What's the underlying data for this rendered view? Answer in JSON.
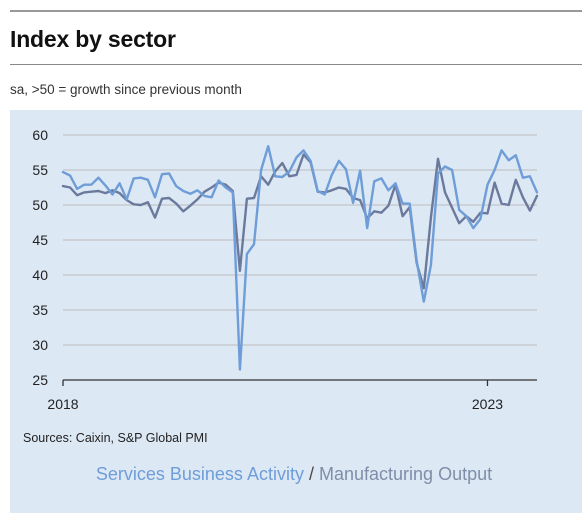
{
  "title": "Index by sector",
  "subtitle": "sa, >50 = growth since previous month",
  "sources": "Sources: Caixin, S&P Global PMI",
  "legend": {
    "services": "Services Business Activity",
    "separator": "/",
    "manufacturing": "Manufacturing Output"
  },
  "colors": {
    "services": "#6f9dd8",
    "manufacturing": "#6b7a9c",
    "panel": "#dde8f5",
    "grid": "#bbbbbb"
  },
  "chart_data": {
    "type": "line",
    "title": "Index by sector",
    "subtitle": "sa, >50 = growth since previous month",
    "xlabel": "",
    "ylabel": "",
    "ylim": [
      25,
      60
    ],
    "yticks": [
      25,
      30,
      35,
      40,
      45,
      50,
      55,
      60
    ],
    "xticks": [
      {
        "label": "2018",
        "month": 0
      },
      {
        "label": "2023",
        "month": 60
      }
    ],
    "x_start": "2018-01",
    "grid": "horizontal",
    "legend_position": "bottom",
    "series": [
      {
        "name": "Services Business Activity",
        "color": "#6f9dd8",
        "values": [
          54.7,
          54.2,
          52.3,
          52.9,
          52.9,
          53.9,
          52.8,
          51.5,
          53.1,
          50.8,
          53.8,
          53.9,
          53.6,
          51.1,
          54.4,
          54.5,
          52.7,
          52.0,
          51.6,
          52.1,
          51.3,
          51.1,
          53.5,
          52.5,
          51.8,
          26.5,
          43.0,
          44.4,
          55.0,
          58.4,
          54.1,
          54.0,
          54.8,
          56.8,
          57.8,
          56.3,
          52.0,
          51.5,
          54.3,
          56.3,
          55.1,
          50.3,
          54.9,
          46.7,
          53.4,
          53.8,
          52.1,
          53.1,
          50.2,
          50.2,
          42.0,
          36.2,
          41.4,
          54.5,
          55.5,
          55.0,
          49.3,
          48.4,
          46.7,
          48.0,
          52.9,
          55.0,
          57.8,
          56.4,
          57.1,
          53.9,
          54.1,
          51.8
        ]
      },
      {
        "name": "Manufacturing Output",
        "color": "#6b7a9c",
        "values": [
          52.7,
          52.5,
          51.4,
          51.8,
          51.9,
          52.0,
          51.7,
          52.1,
          51.7,
          50.7,
          50.1,
          50.0,
          50.4,
          48.2,
          50.9,
          51.0,
          50.2,
          49.1,
          49.9,
          50.8,
          51.9,
          52.5,
          53.2,
          52.9,
          52.0,
          40.6,
          50.9,
          51.0,
          54.1,
          52.9,
          54.8,
          56.0,
          54.1,
          54.3,
          57.2,
          56.1,
          51.9,
          51.8,
          52.1,
          52.5,
          52.3,
          51.0,
          50.7,
          48.1,
          49.1,
          48.9,
          49.9,
          52.9,
          48.4,
          49.7,
          41.7,
          38.1,
          48.2,
          56.6,
          51.8,
          49.6,
          47.4,
          48.4,
          47.6,
          48.9,
          48.8,
          53.2,
          50.2,
          50.0,
          53.6,
          51.1,
          49.2,
          51.3
        ]
      }
    ]
  }
}
